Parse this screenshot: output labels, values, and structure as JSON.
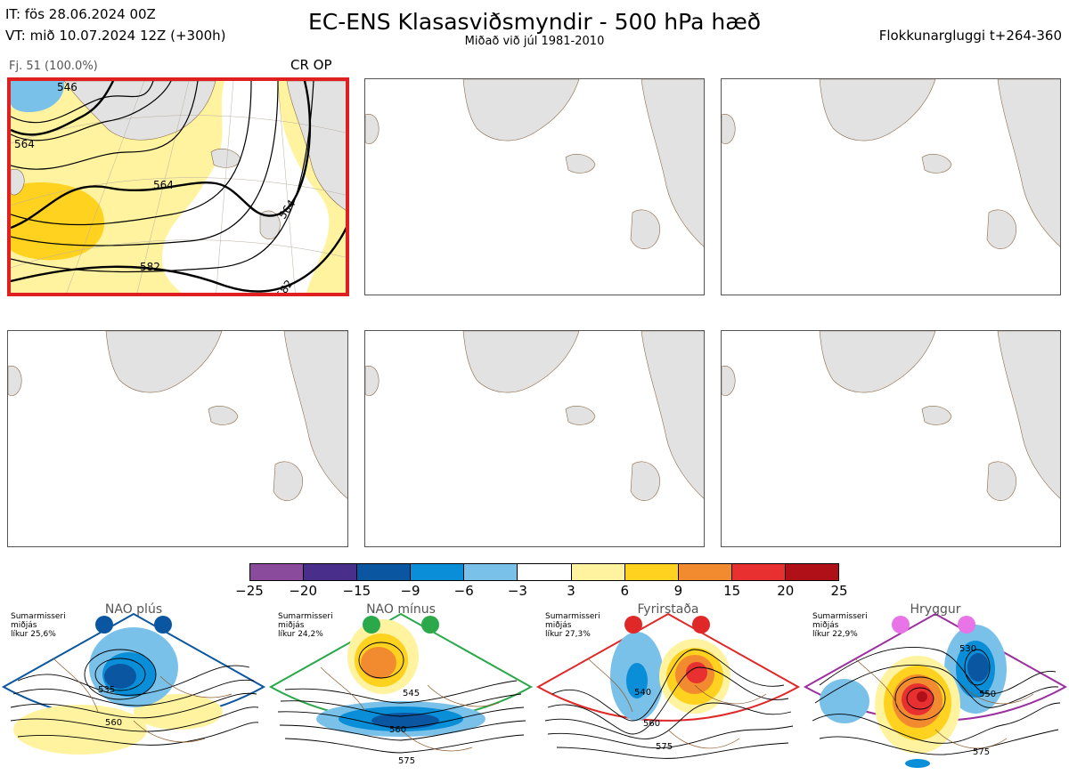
{
  "header": {
    "it_line": "IT: fös 28.06.2024 00Z",
    "vt_line": "VT: mið 10.07.2024 12Z  (+300h)",
    "title": "EC-ENS Klasasviðsmyndir - 500 hPa hæð",
    "subtitle": "Miðað við júl 1981-2010",
    "window": "Flokkunargluggi t+264-360"
  },
  "cluster": {
    "label": "Fj. 51 (100.0%)",
    "tag": "CR OP",
    "contour_labels": [
      "546",
      "564",
      "564",
      "564",
      "582",
      "582"
    ]
  },
  "colorbar": {
    "colors": [
      "#8a4b9c",
      "#4a2e8c",
      "#0a56a0",
      "#0b8ed8",
      "#7ac1ea",
      "#ffffff",
      "#fff3a0",
      "#ffd21f",
      "#f28a30",
      "#e83030",
      "#b01018"
    ],
    "ticks": [
      "−25",
      "−20",
      "−15",
      "−9",
      "−6",
      "−3",
      "3",
      "6",
      "9",
      "15",
      "20",
      "25"
    ]
  },
  "regimes": [
    {
      "name": "NAO plús",
      "note1": "Sumarmisseri",
      "note2": "miðjás",
      "note3": "líkur 25,6%",
      "color": "#0a56a0",
      "labels": [
        "535",
        "560"
      ]
    },
    {
      "name": "NAO mínus",
      "note1": "Sumarmisseri",
      "note2": "miðjás",
      "note3": "líkur 24,2%",
      "color": "#2aa84a",
      "labels": [
        "545",
        "560",
        "575"
      ]
    },
    {
      "name": "Fyrirstaða",
      "note1": "Sumarmisseri",
      "note2": "miðjás",
      "note3": "líkur 27,3%",
      "color": "#e02828",
      "labels": [
        "540",
        "560",
        "575"
      ]
    },
    {
      "name": "Hryggur",
      "note1": "Sumarmisseri",
      "note2": "miðjás",
      "note3": "líkur 22,9%",
      "color": "#9b2fa0",
      "labels": [
        "530",
        "550",
        "575"
      ]
    }
  ]
}
